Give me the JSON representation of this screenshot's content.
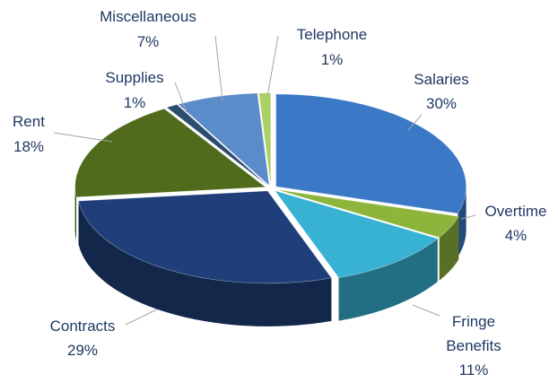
{
  "chart_data": {
    "type": "pie",
    "categories": [
      "Salaries",
      "Overtime",
      "Fringe Benefits",
      "Contracts",
      "Rent",
      "Supplies",
      "Miscellaneous",
      "Telephone"
    ],
    "values": [
      30,
      4,
      11,
      29,
      18,
      1,
      7,
      1
    ],
    "value_labels": [
      "30%",
      "4%",
      "11%",
      "29%",
      "18%",
      "1%",
      "7%",
      "1%"
    ],
    "colors": [
      "#3b78c6",
      "#8db53c",
      "#38b2d2",
      "#203f7a",
      "#4f6b1b",
      "#2b4d6e",
      "#5b8bc9",
      "#a9d163"
    ]
  }
}
